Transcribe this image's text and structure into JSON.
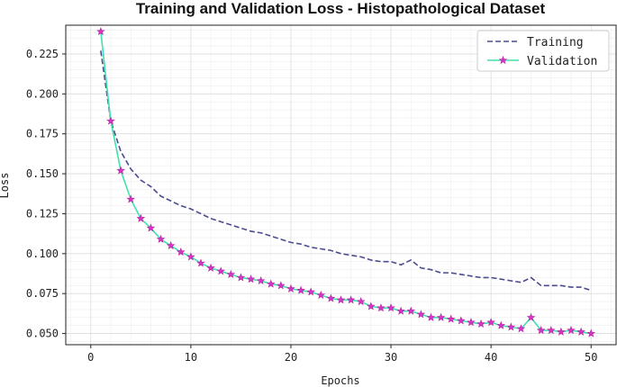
{
  "chart_data": {
    "type": "line",
    "title": "Training and Validation Loss - Histopathological Dataset",
    "xlabel": "Epochs",
    "ylabel": "Loss",
    "xlim": [
      -2.5,
      52.5
    ],
    "ylim": [
      0.043,
      0.243
    ],
    "xticks": [
      0,
      10,
      20,
      30,
      40,
      50
    ],
    "yticks": [
      0.05,
      0.075,
      0.1,
      0.125,
      0.15,
      0.175,
      0.2,
      0.225
    ],
    "ytick_labels": [
      "0.050",
      "0.075",
      "0.100",
      "0.125",
      "0.150",
      "0.175",
      "0.200",
      "0.225"
    ],
    "xtick_labels": [
      "0",
      "10",
      "20",
      "30",
      "40",
      "50"
    ],
    "grid": true,
    "legend_position": "top-right",
    "x": [
      1,
      2,
      3,
      4,
      5,
      6,
      7,
      8,
      9,
      10,
      11,
      12,
      13,
      14,
      15,
      16,
      17,
      18,
      19,
      20,
      21,
      22,
      23,
      24,
      25,
      26,
      27,
      28,
      29,
      30,
      31,
      32,
      33,
      34,
      35,
      36,
      37,
      38,
      39,
      40,
      41,
      42,
      43,
      44,
      45,
      46,
      47,
      48,
      49,
      50
    ],
    "series": [
      {
        "name": "Training",
        "style": "dashed",
        "color": "#4b4b8f",
        "values": [
          0.227,
          0.183,
          0.164,
          0.153,
          0.146,
          0.142,
          0.136,
          0.133,
          0.13,
          0.128,
          0.125,
          0.122,
          0.12,
          0.118,
          0.116,
          0.114,
          0.113,
          0.111,
          0.109,
          0.107,
          0.106,
          0.104,
          0.103,
          0.102,
          0.1,
          0.099,
          0.098,
          0.096,
          0.095,
          0.095,
          0.093,
          0.096,
          0.091,
          0.09,
          0.088,
          0.088,
          0.087,
          0.086,
          0.085,
          0.085,
          0.084,
          0.083,
          0.082,
          0.085,
          0.08,
          0.08,
          0.08,
          0.079,
          0.079,
          0.077
        ]
      },
      {
        "name": "Validation",
        "style": "solid",
        "color": "#40e0b0",
        "marker_color": "#d633c8",
        "values": [
          0.239,
          0.183,
          0.152,
          0.134,
          0.122,
          0.116,
          0.109,
          0.105,
          0.101,
          0.098,
          0.094,
          0.091,
          0.089,
          0.087,
          0.085,
          0.084,
          0.083,
          0.081,
          0.08,
          0.078,
          0.077,
          0.076,
          0.074,
          0.072,
          0.071,
          0.071,
          0.07,
          0.067,
          0.066,
          0.066,
          0.064,
          0.064,
          0.062,
          0.06,
          0.06,
          0.059,
          0.058,
          0.057,
          0.056,
          0.057,
          0.055,
          0.054,
          0.053,
          0.06,
          0.052,
          0.052,
          0.051,
          0.052,
          0.051,
          0.05
        ]
      }
    ]
  }
}
